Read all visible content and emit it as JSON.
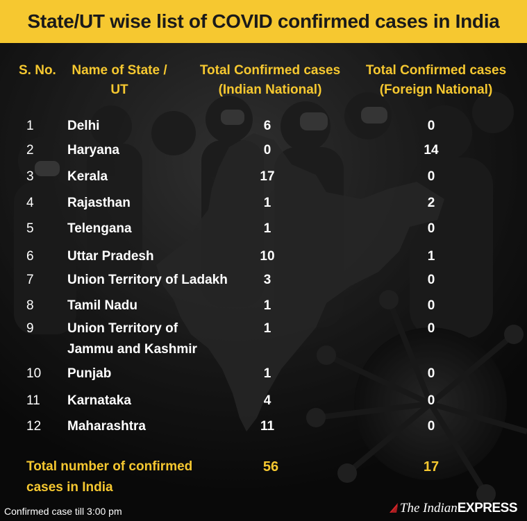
{
  "title": "State/UT wise list of COVID confirmed cases in India",
  "headers": {
    "sno": "S. No.",
    "name": "Name of State / UT",
    "indian": "Total Confirmed cases (Indian National)",
    "foreign": "Total Confirmed cases (Foreign National)"
  },
  "rows": [
    {
      "sno": "1",
      "name": "Delhi",
      "indian": "6",
      "foreign": "0"
    },
    {
      "sno": "2",
      "name": "Haryana",
      "indian": "0",
      "foreign": "14"
    },
    {
      "sno": "3",
      "name": "Kerala",
      "indian": "17",
      "foreign": "0"
    },
    {
      "sno": "4",
      "name": "Rajasthan",
      "indian": "1",
      "foreign": "2"
    },
    {
      "sno": "5",
      "name": "Telengana",
      "indian": "1",
      "foreign": "0"
    },
    {
      "sno": "6",
      "name": "Uttar Pradesh",
      "indian": "10",
      "foreign": "1"
    },
    {
      "sno": "7",
      "name": "Union Territory of Ladakh",
      "indian": "3",
      "foreign": "0"
    },
    {
      "sno": "8",
      "name": "Tamil Nadu",
      "indian": "1",
      "foreign": "0"
    },
    {
      "sno": "9",
      "name_line1": "Union Territory of",
      "name_line2": "Jammu and Kashmir",
      "indian": "1",
      "foreign": "0"
    },
    {
      "sno": "10",
      "name": "Punjab",
      "indian": "1",
      "foreign": "0"
    },
    {
      "sno": "11",
      "name": "Karnataka",
      "indian": "4",
      "foreign": "0"
    },
    {
      "sno": "12",
      "name": "Maharashtra",
      "indian": "11",
      "foreign": "0"
    }
  ],
  "total": {
    "label_line1": "Total number of confirmed",
    "label_line2": "cases in India",
    "indian": "56",
    "foreign": "17"
  },
  "footer": {
    "note": "Confirmed case till 3:00 pm",
    "brand_the_indian": "The Indian",
    "brand_express": "EXPRESS"
  },
  "colors": {
    "accent": "#f6c830",
    "text": "#ffffff",
    "background": "#111111"
  }
}
